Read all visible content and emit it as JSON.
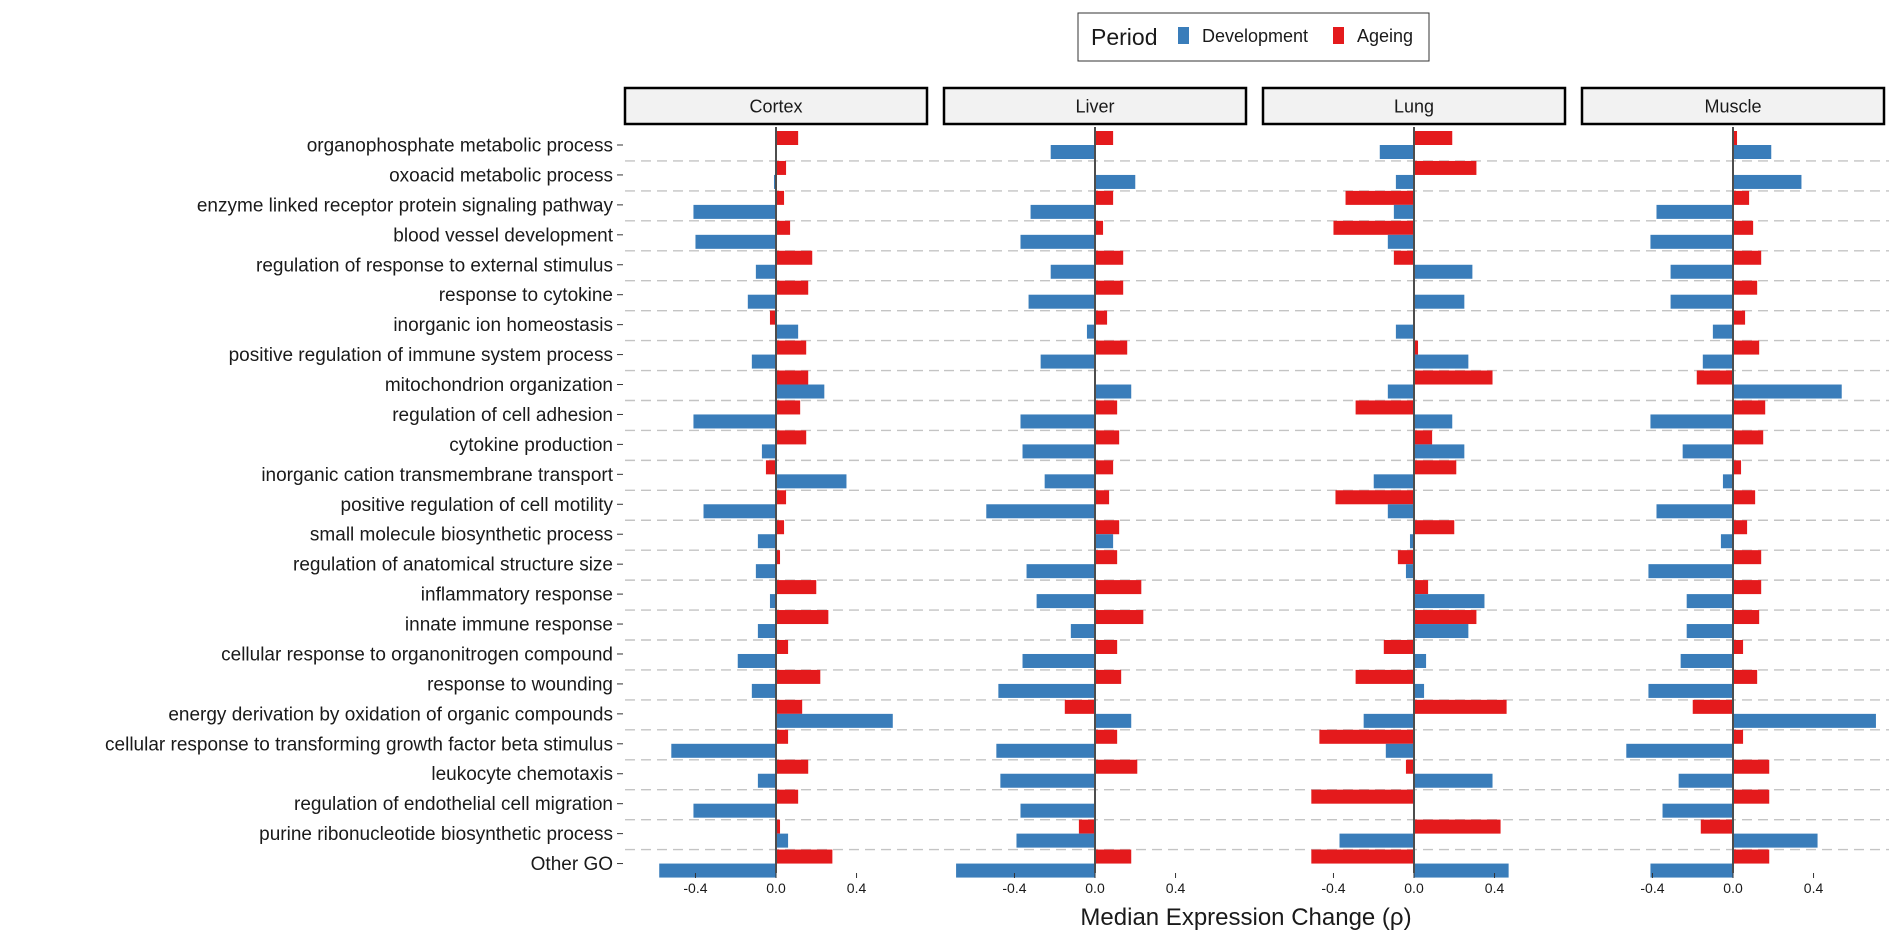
{
  "chart_data": {
    "type": "bar",
    "orientation": "horizontal",
    "xlabel": "Median Expression Change (ρ)",
    "xlim": [
      -0.75,
      0.75
    ],
    "xticks": [
      -0.4,
      0.0,
      0.4
    ],
    "xtick_labels": [
      "-0.4",
      "0.0",
      "0.4"
    ],
    "legend": {
      "title": "Period",
      "position": "top-center",
      "entries": [
        {
          "name": "Development",
          "color": "#3A7DBA"
        },
        {
          "name": "Ageing",
          "color": "#E41A1C"
        }
      ]
    },
    "categories": [
      "organophosphate metabolic process",
      "oxoacid metabolic process",
      "enzyme linked receptor protein signaling pathway",
      "blood vessel development",
      "regulation of response to external stimulus",
      "response to cytokine",
      "inorganic ion homeostasis",
      "positive regulation of immune system process",
      "mitochondrion organization",
      "regulation of cell adhesion",
      "cytokine production",
      "inorganic cation transmembrane transport",
      "positive regulation of cell motility",
      "small molecule biosynthetic process",
      "regulation of anatomical structure size",
      "inflammatory response",
      "innate immune response",
      "cellular response to organonitrogen compound",
      "response to wounding",
      "energy derivation by oxidation of organic compounds",
      "cellular response to transforming growth factor beta stimulus",
      "leukocyte chemotaxis",
      "regulation of endothelial cell migration",
      "purine ribonucleotide biosynthetic process",
      "Other GO"
    ],
    "panels": [
      {
        "name": "Cortex",
        "series": [
          {
            "name": "Ageing",
            "values": [
              0.11,
              0.05,
              0.04,
              0.07,
              0.18,
              0.16,
              -0.03,
              0.15,
              0.16,
              0.12,
              0.15,
              -0.05,
              0.05,
              0.04,
              0.02,
              0.2,
              0.26,
              0.06,
              0.22,
              0.13,
              0.06,
              0.16,
              0.11,
              0.02,
              0.28
            ]
          },
          {
            "name": "Development",
            "values": [
              0.0,
              -0.01,
              -0.41,
              -0.4,
              -0.1,
              -0.14,
              0.11,
              -0.12,
              0.24,
              -0.41,
              -0.07,
              0.35,
              -0.36,
              -0.09,
              -0.1,
              -0.03,
              -0.09,
              -0.19,
              -0.12,
              0.58,
              -0.52,
              -0.09,
              -0.41,
              0.06,
              -0.58
            ]
          }
        ]
      },
      {
        "name": "Liver",
        "series": [
          {
            "name": "Ageing",
            "values": [
              0.09,
              0.0,
              0.09,
              0.04,
              0.14,
              0.14,
              0.06,
              0.16,
              0.0,
              0.11,
              0.12,
              0.09,
              0.07,
              0.12,
              0.11,
              0.23,
              0.24,
              0.11,
              0.13,
              -0.15,
              0.11,
              0.21,
              0.0,
              -0.08,
              0.18
            ]
          },
          {
            "name": "Development",
            "values": [
              -0.22,
              0.2,
              -0.32,
              -0.37,
              -0.22,
              -0.33,
              -0.04,
              -0.27,
              0.18,
              -0.37,
              -0.36,
              -0.25,
              -0.54,
              0.09,
              -0.34,
              -0.29,
              -0.12,
              -0.36,
              -0.48,
              0.18,
              -0.49,
              -0.47,
              -0.37,
              -0.39,
              -0.69
            ]
          }
        ]
      },
      {
        "name": "Lung",
        "series": [
          {
            "name": "Ageing",
            "values": [
              0.19,
              0.31,
              -0.34,
              -0.4,
              -0.1,
              0.0,
              0.0,
              0.02,
              0.39,
              -0.29,
              0.09,
              0.21,
              -0.39,
              0.2,
              -0.08,
              0.07,
              0.31,
              -0.15,
              -0.29,
              0.46,
              -0.47,
              -0.04,
              -0.51,
              0.43,
              -0.51
            ]
          },
          {
            "name": "Development",
            "values": [
              -0.17,
              -0.09,
              -0.1,
              -0.13,
              0.29,
              0.25,
              -0.09,
              0.27,
              -0.13,
              0.19,
              0.25,
              -0.2,
              -0.13,
              -0.02,
              -0.04,
              0.35,
              0.27,
              0.06,
              0.05,
              -0.25,
              -0.14,
              0.39,
              0.0,
              -0.37,
              0.47
            ]
          }
        ]
      },
      {
        "name": "Muscle",
        "series": [
          {
            "name": "Ageing",
            "values": [
              0.02,
              0.0,
              0.08,
              0.1,
              0.14,
              0.12,
              0.06,
              0.13,
              -0.18,
              0.16,
              0.15,
              0.04,
              0.11,
              0.07,
              0.14,
              0.14,
              0.13,
              0.05,
              0.12,
              -0.2,
              0.05,
              0.18,
              0.18,
              -0.16,
              0.18
            ]
          },
          {
            "name": "Development",
            "values": [
              0.19,
              0.34,
              -0.38,
              -0.41,
              -0.31,
              -0.31,
              -0.1,
              -0.15,
              0.54,
              -0.41,
              -0.25,
              -0.05,
              -0.38,
              -0.06,
              -0.42,
              -0.23,
              -0.23,
              -0.26,
              -0.42,
              0.71,
              -0.53,
              -0.27,
              -0.35,
              0.42,
              -0.41
            ]
          }
        ]
      }
    ]
  }
}
